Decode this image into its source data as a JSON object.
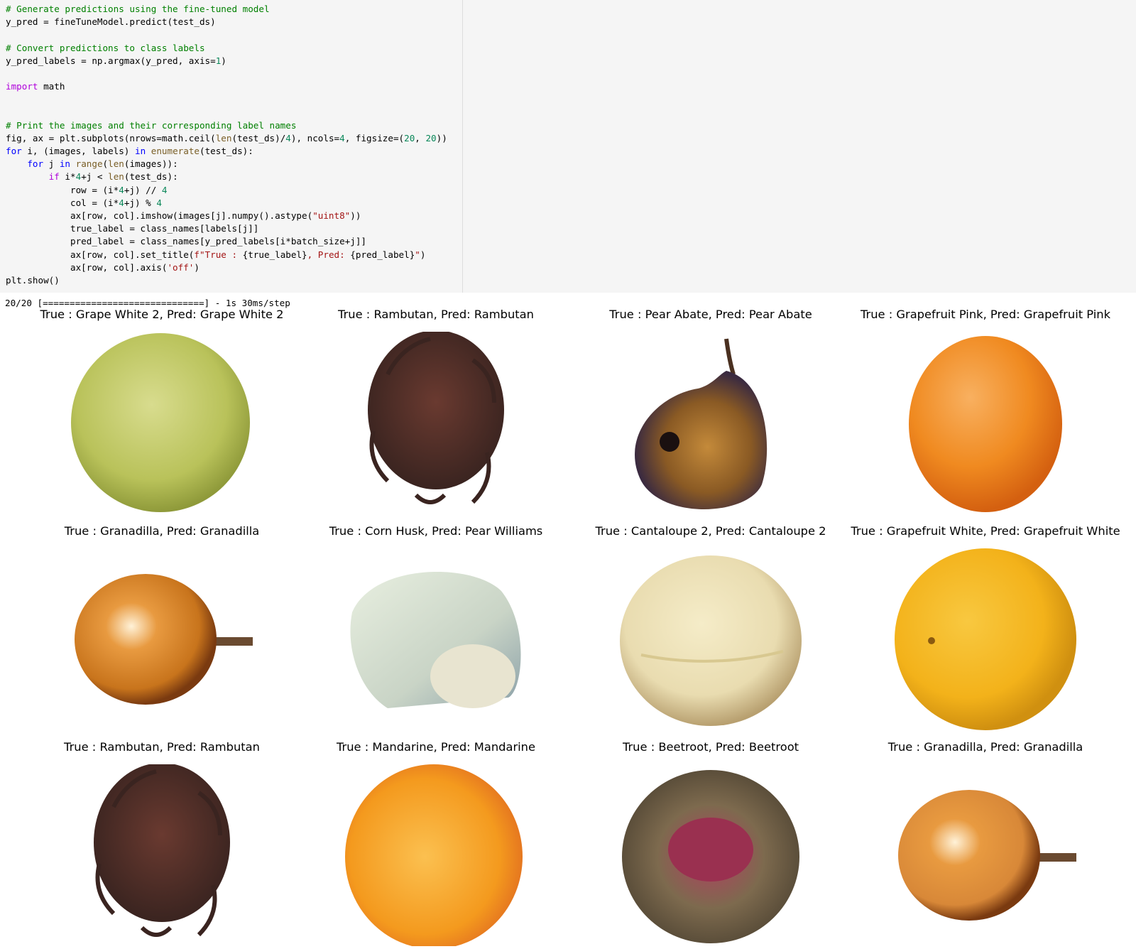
{
  "code": {
    "lines": [
      [
        {
          "t": "comment",
          "s": "# Generate predictions using the fine-tuned model"
        }
      ],
      [
        {
          "t": "plain",
          "s": "y_pred = fineTuneModel.predict(test_ds)"
        }
      ],
      [],
      [
        {
          "t": "comment",
          "s": "# Convert predictions to class labels"
        }
      ],
      [
        {
          "t": "plain",
          "s": "y_pred_labels = np.argmax(y_pred, axis="
        },
        {
          "t": "num",
          "s": "1"
        },
        {
          "t": "plain",
          "s": ")"
        }
      ],
      [],
      [
        {
          "t": "kw2",
          "s": "import"
        },
        {
          "t": "plain",
          "s": " math"
        }
      ],
      [],
      [],
      [
        {
          "t": "comment",
          "s": "# Print the images and their corresponding label names"
        }
      ],
      [
        {
          "t": "plain",
          "s": "fig, ax = plt.subplots(nrows=math.ceil("
        },
        {
          "t": "bi",
          "s": "len"
        },
        {
          "t": "plain",
          "s": "(test_ds)/"
        },
        {
          "t": "num",
          "s": "4"
        },
        {
          "t": "plain",
          "s": "), ncols="
        },
        {
          "t": "num",
          "s": "4"
        },
        {
          "t": "plain",
          "s": ", figsize=("
        },
        {
          "t": "num",
          "s": "20"
        },
        {
          "t": "plain",
          "s": ", "
        },
        {
          "t": "num",
          "s": "20"
        },
        {
          "t": "plain",
          "s": "))"
        }
      ],
      [
        {
          "t": "kw",
          "s": "for"
        },
        {
          "t": "plain",
          "s": " i, (images, labels) "
        },
        {
          "t": "kw",
          "s": "in"
        },
        {
          "t": "plain",
          "s": " "
        },
        {
          "t": "bi",
          "s": "enumerate"
        },
        {
          "t": "plain",
          "s": "(test_ds):"
        }
      ],
      [
        {
          "t": "plain",
          "s": "    "
        },
        {
          "t": "kw",
          "s": "for"
        },
        {
          "t": "plain",
          "s": " j "
        },
        {
          "t": "kw",
          "s": "in"
        },
        {
          "t": "plain",
          "s": " "
        },
        {
          "t": "bi",
          "s": "range"
        },
        {
          "t": "plain",
          "s": "("
        },
        {
          "t": "bi",
          "s": "len"
        },
        {
          "t": "plain",
          "s": "(images)):"
        }
      ],
      [
        {
          "t": "plain",
          "s": "        "
        },
        {
          "t": "kw2",
          "s": "if"
        },
        {
          "t": "plain",
          "s": " i*"
        },
        {
          "t": "num",
          "s": "4"
        },
        {
          "t": "plain",
          "s": "+j < "
        },
        {
          "t": "bi",
          "s": "len"
        },
        {
          "t": "plain",
          "s": "(test_ds):"
        }
      ],
      [
        {
          "t": "plain",
          "s": "            row = (i*"
        },
        {
          "t": "num",
          "s": "4"
        },
        {
          "t": "plain",
          "s": "+j) // "
        },
        {
          "t": "num",
          "s": "4"
        }
      ],
      [
        {
          "t": "plain",
          "s": "            col = (i*"
        },
        {
          "t": "num",
          "s": "4"
        },
        {
          "t": "plain",
          "s": "+j) % "
        },
        {
          "t": "num",
          "s": "4"
        }
      ],
      [
        {
          "t": "plain",
          "s": "            ax[row, col].imshow(images[j].numpy().astype("
        },
        {
          "t": "str",
          "s": "\"uint8\""
        },
        {
          "t": "plain",
          "s": "))"
        }
      ],
      [
        {
          "t": "plain",
          "s": "            true_label = class_names[labels[j]]"
        }
      ],
      [
        {
          "t": "plain",
          "s": "            pred_label = class_names[y_pred_labels[i*batch_size+j]]"
        }
      ],
      [
        {
          "t": "plain",
          "s": "            ax[row, col].set_title("
        },
        {
          "t": "str",
          "s": "f\"True : "
        },
        {
          "t": "plain",
          "s": "{true_label}"
        },
        {
          "t": "str",
          "s": ", Pred: "
        },
        {
          "t": "plain",
          "s": "{pred_label}"
        },
        {
          "t": "str",
          "s": "\""
        },
        {
          "t": "plain",
          "s": ")"
        }
      ],
      [
        {
          "t": "plain",
          "s": "            ax[row, col].axis("
        },
        {
          "t": "str",
          "s": "'off'"
        },
        {
          "t": "plain",
          "s": ")"
        }
      ],
      [
        {
          "t": "plain",
          "s": "plt.show()"
        }
      ]
    ]
  },
  "output": {
    "progress_text": "20/20 [==============================] - 1s 30ms/step"
  },
  "panels": [
    {
      "title": "True : Grape White 2, Pred: Grape White 2",
      "fruit": "grape-white",
      "color": "#b9c25a"
    },
    {
      "title": "True : Rambutan, Pred: Rambutan",
      "fruit": "rambutan",
      "color": "#3a2420"
    },
    {
      "title": "True : Pear Abate, Pred: Pear Abate",
      "fruit": "pear-abate",
      "color": "#8a5a24"
    },
    {
      "title": "True : Grapefruit Pink, Pred: Grapefruit Pink",
      "fruit": "grapefruit-pink",
      "color": "#f08a20"
    },
    {
      "title": "True : Granadilla, Pred: Granadilla",
      "fruit": "granadilla",
      "color": "#c8741c"
    },
    {
      "title": "True : Corn Husk, Pred: Pear Williams",
      "fruit": "corn-husk",
      "color": "#c9d4c6"
    },
    {
      "title": "True : Cantaloupe 2, Pred: Cantaloupe 2",
      "fruit": "cantaloupe",
      "color": "#e9dcb0"
    },
    {
      "title": "True : Grapefruit White, Pred: Grapefruit White",
      "fruit": "grapefruit-white",
      "color": "#f3b21a"
    },
    {
      "title": "True : Rambutan, Pred: Rambutan",
      "fruit": "rambutan",
      "color": "#3a2420"
    },
    {
      "title": "True : Mandarine, Pred: Mandarine",
      "fruit": "mandarine",
      "color": "#f49a1e"
    },
    {
      "title": "True : Beetroot, Pred: Beetroot",
      "fruit": "beetroot",
      "color": "#7d6a4e"
    },
    {
      "title": "True : Granadilla, Pred: Granadilla",
      "fruit": "granadilla",
      "color": "#d88838"
    }
  ]
}
